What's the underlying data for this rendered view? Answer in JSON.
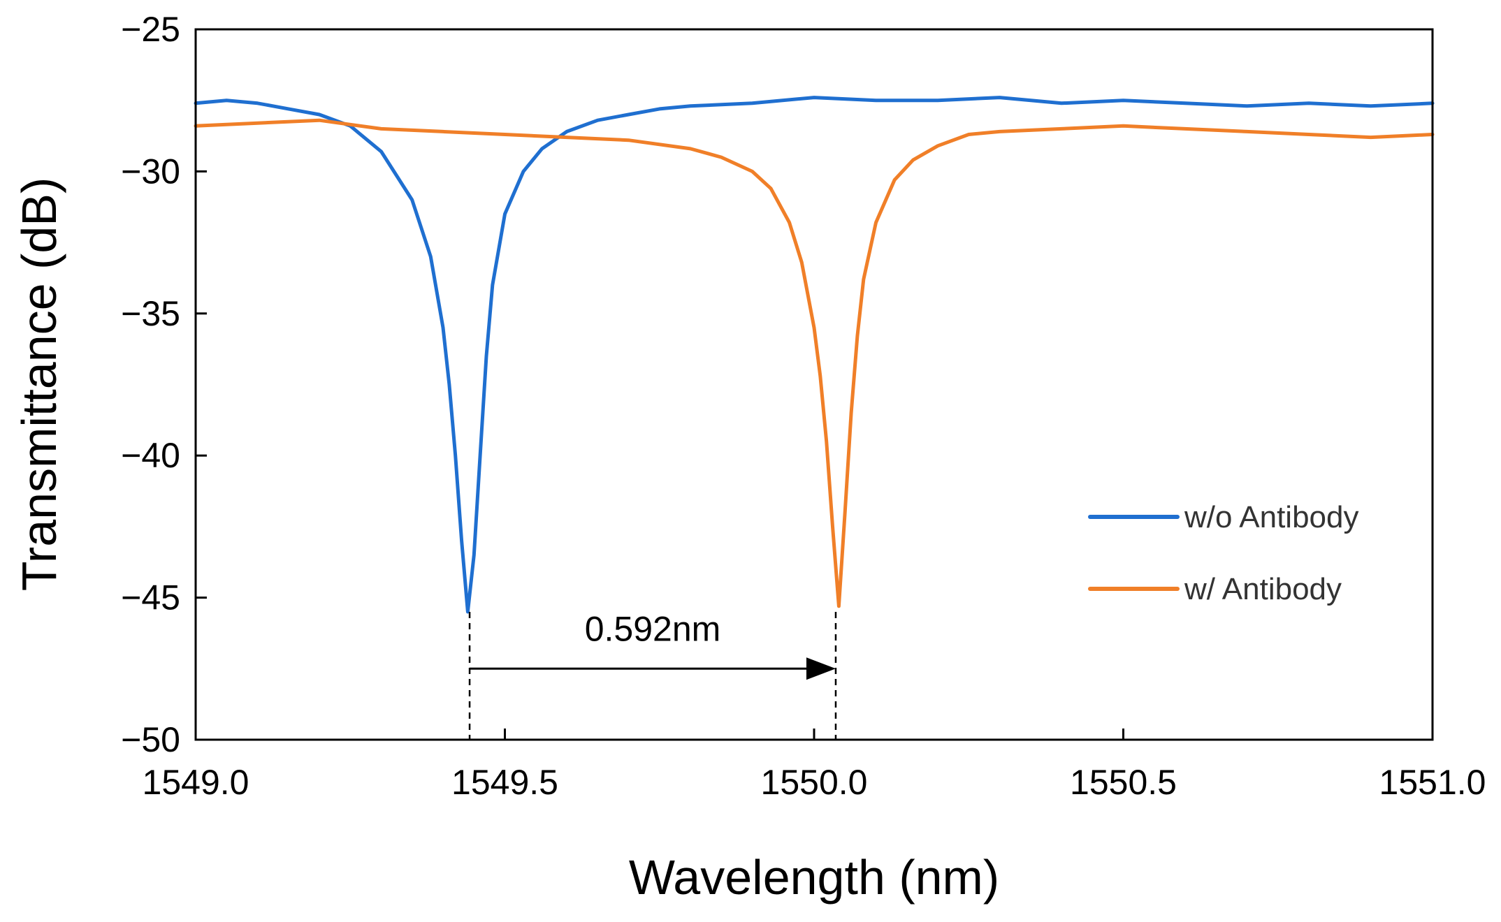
{
  "chart_data": {
    "type": "line",
    "title": "",
    "xlabel": "Wavelength (nm)",
    "ylabel": "Transmittance (dB)",
    "xlim": [
      1549.0,
      1551.0
    ],
    "ylim": [
      -50,
      -25
    ],
    "xticks": [
      1549.0,
      1549.5,
      1550.0,
      1550.5,
      1551.0
    ],
    "xtick_labels": [
      "1549.0",
      "1549.5",
      "1550.0",
      "1550.5",
      "1551.0"
    ],
    "yticks": [
      -25,
      -30,
      -35,
      -40,
      -45,
      -50
    ],
    "ytick_labels": [
      "−25",
      "−30",
      "−35",
      "−40",
      "−45",
      "−50"
    ],
    "grid": false,
    "legend_position": "right",
    "series": [
      {
        "name": "w/o Antibody",
        "color": "#1f6fd0",
        "x": [
          1549.0,
          1549.05,
          1549.1,
          1549.15,
          1549.2,
          1549.25,
          1549.3,
          1549.35,
          1549.38,
          1549.4,
          1549.41,
          1549.42,
          1549.43,
          1549.44,
          1549.45,
          1549.46,
          1549.47,
          1549.48,
          1549.5,
          1549.53,
          1549.56,
          1549.6,
          1549.65,
          1549.7,
          1549.75,
          1549.8,
          1549.9,
          1550.0,
          1550.1,
          1550.2,
          1550.3,
          1550.4,
          1550.5,
          1550.6,
          1550.7,
          1550.8,
          1550.9,
          1551.0
        ],
        "y": [
          -27.6,
          -27.5,
          -27.6,
          -27.8,
          -28.0,
          -28.4,
          -29.3,
          -31.0,
          -33.0,
          -35.5,
          -37.5,
          -40.0,
          -43.0,
          -45.5,
          -43.5,
          -40.0,
          -36.5,
          -34.0,
          -31.5,
          -30.0,
          -29.2,
          -28.6,
          -28.2,
          -28.0,
          -27.8,
          -27.7,
          -27.6,
          -27.4,
          -27.5,
          -27.5,
          -27.4,
          -27.6,
          -27.5,
          -27.6,
          -27.7,
          -27.6,
          -27.7,
          -27.6
        ]
      },
      {
        "name": "w/ Antibody",
        "color": "#f07f28",
        "x": [
          1549.0,
          1549.1,
          1549.2,
          1549.3,
          1549.4,
          1549.5,
          1549.6,
          1549.7,
          1549.8,
          1549.85,
          1549.9,
          1549.93,
          1549.96,
          1549.98,
          1550.0,
          1550.01,
          1550.02,
          1550.03,
          1550.04,
          1550.05,
          1550.06,
          1550.07,
          1550.08,
          1550.1,
          1550.13,
          1550.16,
          1550.2,
          1550.25,
          1550.3,
          1550.4,
          1550.5,
          1550.6,
          1550.7,
          1550.8,
          1550.9,
          1551.0
        ],
        "y": [
          -28.4,
          -28.3,
          -28.2,
          -28.5,
          -28.6,
          -28.7,
          -28.8,
          -28.9,
          -29.2,
          -29.5,
          -30.0,
          -30.6,
          -31.8,
          -33.2,
          -35.5,
          -37.2,
          -39.5,
          -42.5,
          -45.3,
          -42.0,
          -38.5,
          -35.8,
          -33.8,
          -31.8,
          -30.3,
          -29.6,
          -29.1,
          -28.7,
          -28.6,
          -28.5,
          -28.4,
          -28.5,
          -28.6,
          -28.7,
          -28.8,
          -28.7
        ]
      }
    ],
    "annotations": [
      {
        "text": "0.592nm",
        "type": "arrow",
        "x_start": 1549.443,
        "x_end": 1550.035,
        "y": -47.5,
        "guide_y_top": -45.5
      }
    ]
  }
}
